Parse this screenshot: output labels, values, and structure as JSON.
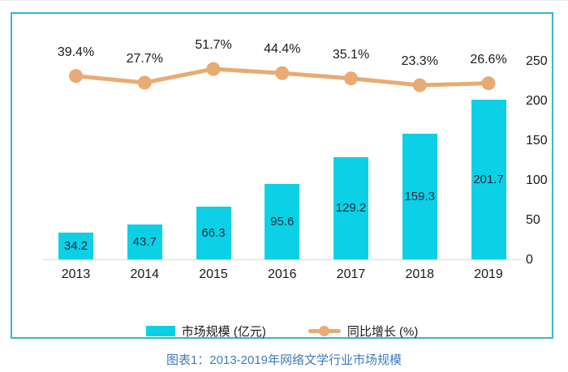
{
  "caption": "图表1：2013-2019年网络文学行业市场规模",
  "legend": {
    "bar_label": "市场规模 (亿元)",
    "line_label": "同比增长 (%)"
  },
  "colors": {
    "bar_fill": "#0cd1e6",
    "line_stroke": "#e8ab74",
    "frame_border": "#38b4d0",
    "caption_text": "#3e7cbe",
    "axis_line": "#d9d9d9",
    "bar_value_text": "#122a3c",
    "label_text": "#1a1a1a"
  },
  "chart_data": {
    "type": "bar",
    "subtype": "combo-bar-line",
    "categories": [
      "2013",
      "2014",
      "2015",
      "2016",
      "2017",
      "2018",
      "2019"
    ],
    "series": [
      {
        "name": "市场规模 (亿元)",
        "type": "bar",
        "values": [
          34.2,
          43.7,
          66.3,
          95.6,
          129.2,
          159.3,
          201.7
        ],
        "labels": [
          "34.2",
          "43.7",
          "66.3",
          "95.6",
          "129.2",
          "159.3",
          "201.7"
        ]
      },
      {
        "name": "同比增长 (%)",
        "type": "line",
        "values": [
          39.4,
          27.7,
          51.7,
          44.4,
          35.1,
          23.3,
          26.6
        ],
        "labels": [
          "39.4%",
          "27.7%",
          "51.7%",
          "44.4%",
          "35.1%",
          "23.3%",
          "26.6%"
        ]
      }
    ],
    "right_axis": {
      "tick_labels": [
        "250",
        "200",
        "150",
        "100",
        "50",
        "0"
      ],
      "range": [
        0,
        250
      ]
    },
    "left_axis": null,
    "grid": false,
    "legend_position": "bottom",
    "data_labels": "bars inside-center, line above points"
  }
}
